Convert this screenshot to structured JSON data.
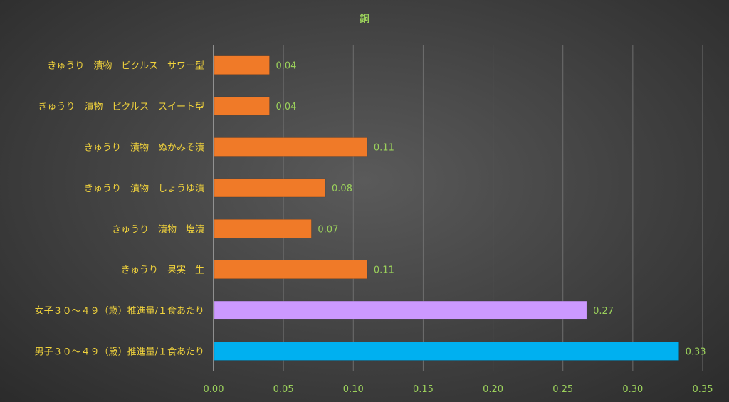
{
  "chart_data": {
    "type": "bar",
    "orientation": "horizontal",
    "title": "銅",
    "categories": [
      "きゅうり　漬物　ピクルス　サワー型",
      "きゅうり　漬物　ピクルス　スイート型",
      "きゅうり　漬物　ぬかみそ漬",
      "きゅうり　漬物　しょうゆ漬",
      "きゅうり　漬物　塩漬",
      "きゅうり　果実　生",
      "女子３０～４９（歳）推進量/１食あたり",
      "男子３０～４９（歳）推進量/１食あたり"
    ],
    "values": [
      0.04,
      0.04,
      0.11,
      0.08,
      0.07,
      0.11,
      0.267,
      0.333
    ],
    "data_labels": [
      "0.04",
      "0.04",
      "0.11",
      "0.08",
      "0.07",
      "0.11",
      "0.27",
      "0.33"
    ],
    "bar_colors": [
      "#f07a28",
      "#f07a28",
      "#f07a28",
      "#f07a28",
      "#f07a28",
      "#f07a28",
      "#cc99ff",
      "#00b0f0"
    ],
    "xlim": [
      0,
      0.35
    ],
    "xticks": [
      "0.00",
      "0.05",
      "0.10",
      "0.15",
      "0.20",
      "0.25",
      "0.30",
      "0.35"
    ],
    "grid": true,
    "legend": "none"
  }
}
